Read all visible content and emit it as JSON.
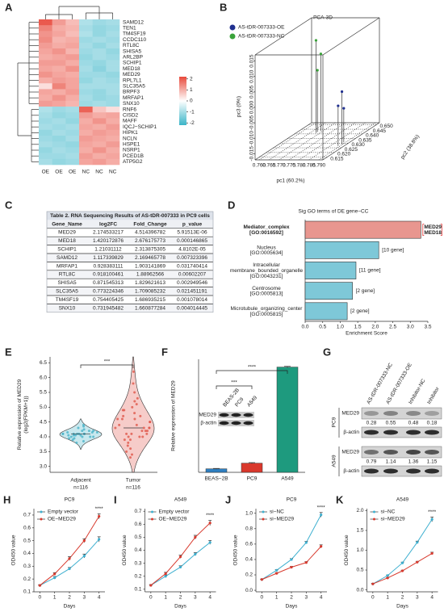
{
  "chart_data": [
    {
      "type": "heatmap",
      "panel": "A",
      "columns": [
        "OE",
        "OE",
        "OE",
        "NC",
        "NC",
        "NC"
      ],
      "rows": [
        "SAMD12",
        "TEN1",
        "TM4SF19",
        "CCDC110",
        "RTL8C",
        "SHISA5",
        "ARL2BP",
        "SCHIP1",
        "MED18",
        "MED29",
        "RPL7L1",
        "SLC35A5",
        "BRPF3",
        "MRFAP1",
        "SNX10",
        "RNF6",
        "CISD2",
        "MAFF",
        "IQCJ−SCHIP1",
        "HIPK1",
        "NCLN",
        "HSPE1",
        "NSRP1",
        "PCED1B",
        "ATP5G2"
      ],
      "row_label_colors": [
        "#222",
        "#222",
        "#222",
        "#222",
        "#222",
        "#222",
        "#222",
        "#222",
        "#222",
        "#e02020",
        "#222",
        "#222",
        "#222",
        "#222",
        "#222",
        "#222",
        "#222",
        "#222",
        "#222",
        "#222",
        "#222",
        "#222",
        "#222",
        "#222",
        "#222"
      ],
      "values": [
        [
          2.0,
          1.2,
          0.8,
          -0.9,
          -1.1,
          -1.0
        ],
        [
          1.5,
          1.0,
          0.9,
          -1.0,
          -1.2,
          -1.1
        ],
        [
          1.3,
          1.1,
          0.8,
          -0.9,
          -1.2,
          -1.0
        ],
        [
          1.4,
          0.9,
          1.0,
          -1.1,
          -1.0,
          -1.1
        ],
        [
          1.2,
          1.0,
          1.1,
          -1.0,
          -1.2,
          -1.0
        ],
        [
          1.1,
          1.3,
          0.9,
          -1.1,
          -1.0,
          -1.2
        ],
        [
          1.0,
          1.1,
          1.2,
          -1.2,
          -1.0,
          -1.1
        ],
        [
          1.2,
          1.2,
          1.0,
          -1.1,
          -1.2,
          -1.0
        ],
        [
          1.1,
          1.0,
          1.3,
          -1.0,
          -1.3,
          -1.0
        ],
        [
          1.3,
          1.1,
          1.0,
          -1.1,
          -1.1,
          -1.2
        ],
        [
          1.0,
          1.2,
          1.1,
          -1.2,
          -1.0,
          -1.1
        ],
        [
          0.4,
          1.5,
          1.1,
          -1.0,
          -1.0,
          -1.0
        ],
        [
          1.1,
          1.0,
          1.2,
          -1.1,
          -1.2,
          -1.0
        ],
        [
          1.0,
          1.3,
          1.0,
          -1.0,
          -1.2,
          -1.1
        ],
        [
          1.2,
          1.1,
          0.9,
          -1.1,
          -1.0,
          -1.1
        ],
        [
          -0.9,
          -1.1,
          -1.0,
          1.9,
          0.7,
          0.4
        ],
        [
          -1.0,
          -1.2,
          -1.1,
          1.2,
          1.0,
          1.1
        ],
        [
          -1.1,
          -1.0,
          -1.2,
          1.0,
          1.3,
          1.0
        ],
        [
          -1.0,
          -1.1,
          -1.0,
          1.1,
          1.0,
          1.2
        ],
        [
          -1.2,
          -1.0,
          -1.1,
          1.0,
          1.2,
          1.1
        ],
        [
          -1.1,
          -1.2,
          -1.0,
          1.2,
          1.1,
          1.0
        ],
        [
          -1.0,
          -1.1,
          -1.2,
          1.1,
          1.0,
          1.2
        ],
        [
          -1.2,
          -1.0,
          -1.1,
          1.0,
          1.3,
          1.0
        ],
        [
          -1.1,
          -1.1,
          -1.0,
          1.2,
          1.0,
          1.1
        ],
        [
          -1.0,
          -1.2,
          -1.1,
          1.1,
          1.2,
          1.0
        ]
      ],
      "colormap": [
        "#3bb5c8",
        "#ffffff",
        "#e84a3c"
      ],
      "clim": [
        -2.2,
        2.2
      ],
      "cticks": [
        2,
        1,
        0,
        -1,
        -2
      ]
    },
    {
      "type": "scatter3d",
      "panel": "B",
      "title": "PCA-3D",
      "xlabel": "pc1 (60.2%)",
      "ylabel": "pc2 (38.8%)",
      "zlabel": "pc3 (0%)",
      "xlim": [
        0.758,
        0.792
      ],
      "ylim": [
        0.612,
        0.652
      ],
      "zlim": [
        -0.017,
        0.017
      ],
      "xticks": [
        {
          "value": 0.76,
          "label": "0.760"
        },
        0.765,
        {
          "value": 0.77,
          "label": "0.770"
        },
        0.775,
        {
          "value": 0.78,
          "label": "0.780"
        },
        0.785,
        {
          "value": 0.79,
          "label": "0.790"
        }
      ],
      "yticks": [
        0.615,
        {
          "value": 0.62,
          "label": "0.620"
        },
        0.625,
        {
          "value": 0.63,
          "label": "0.630"
        },
        0.635,
        {
          "value": 0.64,
          "label": "0.640"
        },
        0.645,
        {
          "value": 0.65,
          "label": "0.650"
        }
      ],
      "zticks": [
        -0.015,
        {
          "value": -0.01,
          "label": "-0.010"
        },
        -0.005,
        {
          "value": 0,
          "label": "0.000"
        },
        0.005,
        {
          "value": 0.01,
          "label": "0.010"
        },
        0.015
      ],
      "series": [
        {
          "name": "AS-tDR-007333-OE",
          "color": "#1f2f8f",
          "x": [
            0.789,
            0.7895,
            0.789
          ],
          "y": [
            0.627,
            0.629,
            0.631
          ],
          "z": [
            -0.004,
            0.0,
            -0.006
          ]
        },
        {
          "name": "AS-tDR-007333-NC",
          "color": "#3aa33a",
          "x": [
            0.768,
            0.769,
            0.768
          ],
          "y": [
            0.641,
            0.643,
            0.642
          ],
          "z": [
            0.013,
            0.008,
            0.003
          ]
        }
      ]
    },
    {
      "type": "table",
      "panel": "C",
      "title": "Table 2. RNA Sequencing Results of AS-tDR-007333 in PC9 cells",
      "header": [
        "Gene_Name",
        "log2FC",
        "Fold_Change",
        "p_value"
      ],
      "rows": [
        [
          "MED29",
          "2.174533217",
          "4.514396782",
          "5.91513E-06"
        ],
        [
          "MED18",
          "1.420172876",
          "2.676175773",
          "0.000146865"
        ],
        [
          "SCHIP1",
          "1.21031112",
          "2.313875305",
          "4.8102E-05"
        ],
        [
          "SAMD12",
          "1.117339829",
          "2.169465778",
          "0.007323396"
        ],
        [
          "MRFAP1",
          "0.928383111",
          "1.903141869",
          "0.031740414"
        ],
        [
          "RTL8C",
          "0.918100461",
          "1.88962566",
          "0.00602207"
        ],
        [
          "SHISA5",
          "0.871545313",
          "1.829621613",
          "0.002949546"
        ],
        [
          "SLC35A5",
          "0.773224346",
          "1.709085232",
          "0.021451191"
        ],
        [
          "TM4SF19",
          "0.754405425",
          "1.686935215",
          "0.001078014"
        ],
        [
          "SNX10",
          "0.731945482",
          "1.660877284",
          "0.004014445"
        ]
      ],
      "row_text_colors": [
        "#e02020",
        "#222",
        "#222",
        "#222",
        "#222",
        "#222",
        "#222",
        "#222",
        "#222",
        "#222"
      ]
    },
    {
      "type": "hbar",
      "panel": "D",
      "title": "Sig GO terms of DE gene−CC",
      "xlabel": "Enrichment Score",
      "categories": [
        "Mediator_complex\n[GO:0016592]",
        "Nucleus\n[GO:0005634]",
        "Intracellular\nmembrane_bounded_organelle\n[GO:0043231]",
        "Centrosome\n[GO:0005813]",
        "Microtubule_organizing_center\n[GO:0005815]"
      ],
      "values": [
        3.3,
        2.1,
        1.45,
        1.35,
        1.2
      ],
      "bar_labels": [
        "MED29\nMED18",
        "[10 gene]",
        "[11 gene]",
        "[2 gene]",
        "[2 gene]"
      ],
      "colors": [
        "#e8968f",
        "#7ec8d8",
        "#7ec8d8",
        "#7ec8d8",
        "#7ec8d8"
      ],
      "label_colors": [
        "#e02020",
        "#222",
        "#222",
        "#222",
        "#222"
      ],
      "xlim": [
        0,
        3.5
      ],
      "xticks": [
        {
          "value": 0,
          "label": "0.0"
        },
        0.5,
        {
          "value": 1,
          "label": "1.0"
        },
        1.5,
        {
          "value": 2,
          "label": "2.0"
        },
        2.5,
        {
          "value": 3,
          "label": "3.0"
        },
        3.5
      ]
    },
    {
      "type": "violin",
      "panel": "E",
      "ylabel": "Relative expression of MED29\n(log2(FPKM+1))",
      "categories": [
        "Adjacent\nn=116",
        "Tumor\nn=116"
      ],
      "colors": [
        "#4ab3c8",
        "#e0574b"
      ],
      "points": [
        [
          4.1,
          4.0,
          4.2,
          4.05,
          3.95,
          4.15,
          4.1,
          4.3,
          3.9,
          4.0,
          4.25,
          4.1,
          4.05,
          4.2,
          3.85,
          4.1,
          4.0,
          4.15,
          4.35,
          4.05,
          3.95,
          4.1,
          4.2,
          4.0,
          4.1,
          3.8,
          4.4,
          4.1,
          4.05,
          4.15
        ],
        [
          4.3,
          4.0,
          4.6,
          3.8,
          4.9,
          4.2,
          5.2,
          3.6,
          4.4,
          4.1,
          5.5,
          3.4,
          4.7,
          4.3,
          4.0,
          5.0,
          3.9,
          4.5,
          4.2,
          5.8,
          3.7,
          4.6,
          4.3,
          4.8,
          4.1,
          3.5,
          5.3,
          4.4,
          4.0,
          4.9,
          4.2,
          6.2,
          3.9,
          4.6,
          4.3,
          5.1,
          4.1,
          3.3,
          4.5,
          4.7
        ]
      ],
      "medians": [
        4.1,
        4.3
      ],
      "significance": "***",
      "ylim": [
        2.8,
        6.7
      ],
      "yticks": [
        {
          "value": 3,
          "label": "3.0"
        },
        3.5,
        {
          "value": 4,
          "label": "4.0"
        },
        4.5,
        {
          "value": 5,
          "label": "5.0"
        },
        5.5,
        {
          "value": 6,
          "label": "6.0"
        },
        6.5
      ]
    },
    {
      "type": "bar",
      "panel": "F",
      "ylabel": "Relative expression of MED29",
      "categories": [
        "BEAS−2B",
        "PC9",
        "A549"
      ],
      "values": [
        1,
        2.6,
        29.8
      ],
      "errors": [
        0.1,
        0.15,
        0.2
      ],
      "colors": [
        "#2e7fc1",
        "#d9382c",
        "#1e9a7e"
      ],
      "ylim": [
        0,
        32
      ],
      "significance": [
        "***",
        "****"
      ],
      "blot_lanes": [
        "BEAS-2B",
        "PC9",
        "A549"
      ],
      "blot_rows": [
        "MED29",
        "β-actin"
      ]
    },
    {
      "type": "blot",
      "panel": "G",
      "columns": [
        "AS-tDR-007333-NC",
        "AS-tDR-007333-OE",
        "Inhibitor-NC",
        "Inhibitor"
      ],
      "groups": [
        {
          "name": "PC9",
          "rows": [
            "MED29",
            "β-actin"
          ],
          "values": [
            0.28,
            0.55,
            0.48,
            0.18
          ]
        },
        {
          "name": "A549",
          "rows": [
            "MED29",
            "β-actin"
          ],
          "values": [
            0.79,
            1.14,
            1.36,
            1.15
          ]
        }
      ]
    },
    {
      "type": "line",
      "panel": "H",
      "title": "PC9",
      "xlabel": "Days",
      "ylabel": "OD450 value",
      "x": [
        0,
        1,
        2,
        3,
        4
      ],
      "xlim": [
        -0.4,
        4.4
      ],
      "xticks": [
        0,
        1,
        2,
        3,
        4
      ],
      "ylim": [
        0.1,
        0.75
      ],
      "yticks": [
        0.1,
        0.2,
        0.3,
        0.4,
        0.5,
        0.6,
        0.7
      ],
      "significance": "****",
      "series": [
        {
          "name": "Empty vector",
          "color": "#3fb0d0",
          "values": [
            0.15,
            0.21,
            0.28,
            0.38,
            0.51
          ],
          "errors": [
            0.005,
            0.01,
            0.01,
            0.015,
            0.02
          ]
        },
        {
          "name": "OE−MED29",
          "color": "#d83a2e",
          "values": [
            0.15,
            0.24,
            0.36,
            0.5,
            0.69
          ],
          "errors": [
            0.005,
            0.01,
            0.015,
            0.015,
            0.02
          ]
        }
      ]
    },
    {
      "type": "line",
      "panel": "I",
      "title": "A549",
      "xlabel": "Days",
      "ylabel": "OD450 value",
      "x": [
        0,
        1,
        2,
        3,
        4
      ],
      "xlim": [
        -0.4,
        4.4
      ],
      "xticks": [
        0,
        1,
        2,
        3,
        4
      ],
      "ylim": [
        0.08,
        0.72
      ],
      "yticks": [
        0.1,
        0.2,
        0.3,
        0.4,
        0.5,
        0.6,
        0.7
      ],
      "significance": "****",
      "series": [
        {
          "name": "Empty vector",
          "color": "#3fb0d0",
          "values": [
            0.13,
            0.2,
            0.27,
            0.37,
            0.46
          ],
          "errors": [
            0.005,
            0.01,
            0.01,
            0.012,
            0.015
          ]
        },
        {
          "name": "OE−MED29",
          "color": "#d83a2e",
          "values": [
            0.13,
            0.22,
            0.35,
            0.5,
            0.61
          ],
          "errors": [
            0.005,
            0.01,
            0.012,
            0.015,
            0.02
          ]
        }
      ]
    },
    {
      "type": "line",
      "panel": "J",
      "title": "PC9",
      "xlabel": "Days",
      "ylabel": "OD450 value",
      "x": [
        0,
        1,
        2,
        3,
        4
      ],
      "xlim": [
        -0.4,
        4.4
      ],
      "xticks": [
        0,
        1,
        2,
        3,
        4
      ],
      "ylim": [
        -0.02,
        1.06
      ],
      "yticks": [
        {
          "value": 0,
          "label": "0.0"
        },
        0.2,
        0.4,
        0.6,
        0.8,
        {
          "value": 1,
          "label": "1.0"
        }
      ],
      "significance": "****",
      "series": [
        {
          "name": "si−NC",
          "color": "#3fb0d0",
          "values": [
            0.14,
            0.26,
            0.4,
            0.62,
            0.98
          ],
          "errors": [
            0.005,
            0.01,
            0.012,
            0.015,
            0.03
          ]
        },
        {
          "name": "si−MED29",
          "color": "#d83a2e",
          "values": [
            0.14,
            0.22,
            0.3,
            0.36,
            0.57
          ],
          "errors": [
            0.005,
            0.01,
            0.01,
            0.012,
            0.02
          ]
        }
      ]
    },
    {
      "type": "line",
      "panel": "K",
      "title": "A549",
      "xlabel": "Days",
      "ylabel": "OD450 value",
      "x": [
        0,
        1,
        2,
        3,
        4
      ],
      "xlim": [
        -0.4,
        4.4
      ],
      "xticks": [
        0,
        1,
        2,
        3,
        4
      ],
      "ylim": [
        -0.05,
        2.05
      ],
      "yticks": [
        {
          "value": 0,
          "label": "0.0"
        },
        0.5,
        {
          "value": 1,
          "label": "1.0"
        },
        1.5,
        {
          "value": 2,
          "label": "2.0"
        }
      ],
      "significance": "****",
      "series": [
        {
          "name": "si−NC",
          "color": "#3fb0d0",
          "values": [
            0.15,
            0.36,
            0.68,
            1.2,
            1.78
          ],
          "errors": [
            0.01,
            0.015,
            0.02,
            0.03,
            0.06
          ]
        },
        {
          "name": "si−MED29",
          "color": "#d83a2e",
          "values": [
            0.15,
            0.3,
            0.48,
            0.7,
            0.92
          ],
          "errors": [
            0.01,
            0.012,
            0.015,
            0.02,
            0.03
          ]
        }
      ]
    }
  ]
}
